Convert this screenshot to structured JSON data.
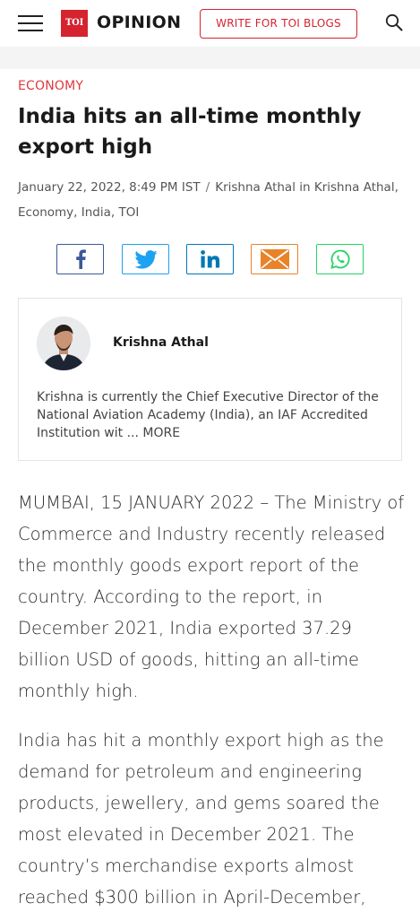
{
  "header": {
    "logo_text": "TOI",
    "section_title": "OPINION",
    "write_button_label": "WRITE FOR TOI BLOGS",
    "icons": {
      "menu": "hamburger-menu-icon",
      "search": "search-icon"
    }
  },
  "article": {
    "category": "ECONOMY",
    "headline": "India hits an all-time monthly export high",
    "meta": {
      "date": "January 22, 2022, 8:49 PM IST",
      "separator": "/",
      "byline": "Krishna Athal in Krishna Athal, Economy, India, TOI"
    },
    "share_icons": [
      "facebook-icon",
      "twitter-icon",
      "linkedin-icon",
      "email-icon",
      "whatsapp-icon"
    ],
    "author": {
      "name": "Krishna Athal",
      "bio": "Krishna is currently the Chief Executive Director of the National Aviation Academy (India), an IAF Accredited Institution wit ...",
      "more_label": "MORE"
    },
    "paragraphs": [
      "MUMBAI, 15 JANUARY 2022 – The Ministry of Commerce and Industry recently released the monthly goods export report of the country. According to the report, in December 2021, India exported 37.29 billion USD of goods, hitting an all-time monthly high.",
      "India has hit a monthly export high as the demand for petroleum and engineering products, jewellery, and gems soared the most elevated in December 2021. The country’s merchandise exports almost reached $300 billion in April-December,"
    ]
  },
  "colors": {
    "brand_red": "#d5232f",
    "category_red": "#e0393e",
    "facebook": "#3b5998",
    "twitter": "#1da1f2",
    "linkedin": "#0077b5",
    "email": "#e8832a",
    "whatsapp": "#25d366"
  }
}
